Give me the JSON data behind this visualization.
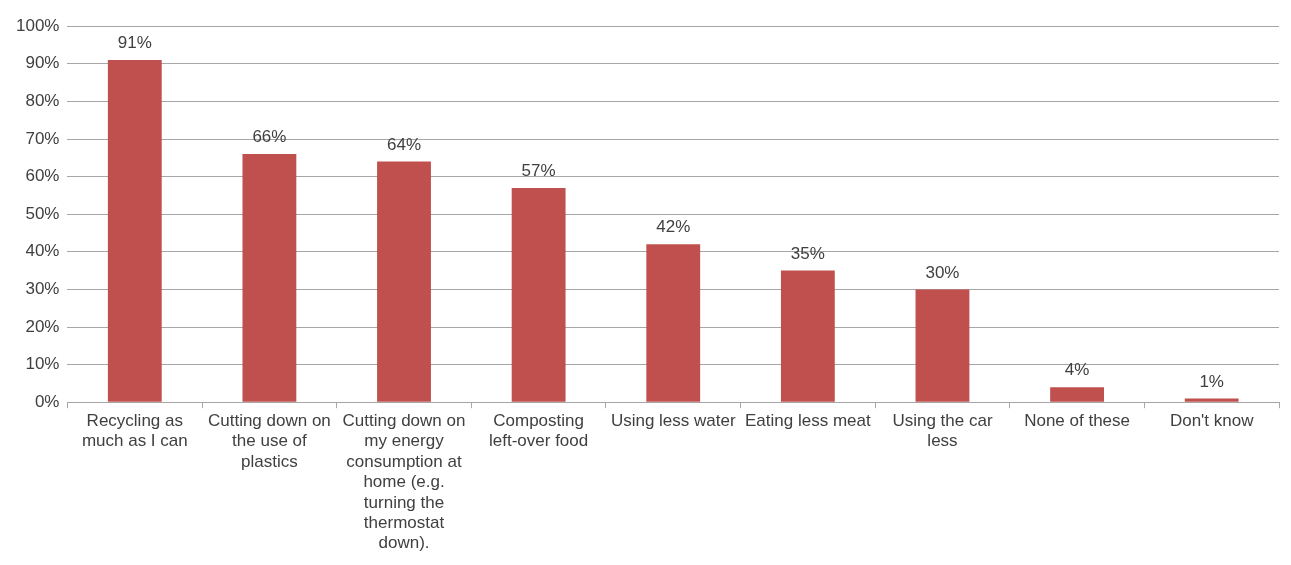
{
  "chart_data": {
    "type": "bar",
    "categories": [
      "Recycling as much as I can",
      "Cutting down on the use of plastics",
      "Cutting down on my energy consumption at home (e.g. turning the thermostat down).",
      "Composting left-over food",
      "Using less water",
      "Eating less meat",
      "Using the car less",
      "None of these",
      "Don't know"
    ],
    "values": [
      91,
      66,
      64,
      57,
      42,
      35,
      30,
      4,
      1
    ],
    "value_labels": [
      "91%",
      "66%",
      "64%",
      "57%",
      "42%",
      "35%",
      "30%",
      "4%",
      "1%"
    ],
    "color": "#c0504d",
    "ylim": [
      0,
      100
    ],
    "yticks": [
      {
        "value": 0,
        "label": "0%"
      },
      {
        "value": 10,
        "label": "10%"
      },
      {
        "value": 20,
        "label": "20%"
      },
      {
        "value": 30,
        "label": "30%"
      },
      {
        "value": 40,
        "label": "40%"
      },
      {
        "value": 50,
        "label": "50%"
      },
      {
        "value": 60,
        "label": "60%"
      },
      {
        "value": 70,
        "label": "70%"
      },
      {
        "value": 80,
        "label": "80%"
      },
      {
        "value": 90,
        "label": "90%"
      },
      {
        "value": 100,
        "label": "100%"
      }
    ],
    "grid": "y",
    "legend": false
  }
}
